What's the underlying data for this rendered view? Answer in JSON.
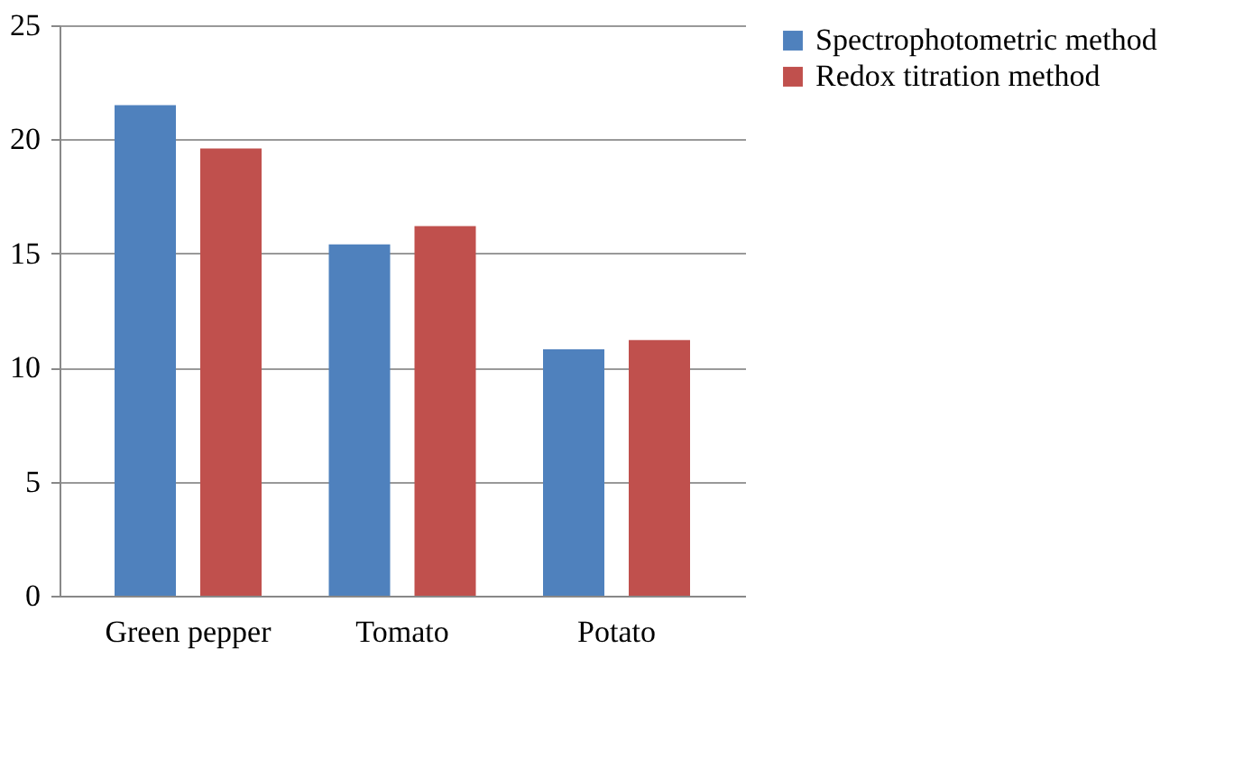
{
  "chart_data": {
    "type": "bar",
    "categories": [
      "Green pepper",
      "Tomato",
      "Potato"
    ],
    "series": [
      {
        "name": "Spectrophotometric method",
        "color": "#4f81bd",
        "values": [
          21.5,
          15.4,
          10.8
        ]
      },
      {
        "name": "Redox titration method",
        "color": "#c0504d",
        "values": [
          19.6,
          16.2,
          11.2
        ]
      }
    ],
    "ylim": [
      0,
      25
    ],
    "yticks": [
      0,
      5,
      10,
      15,
      20,
      25
    ],
    "grid": "y",
    "legend": "right"
  }
}
